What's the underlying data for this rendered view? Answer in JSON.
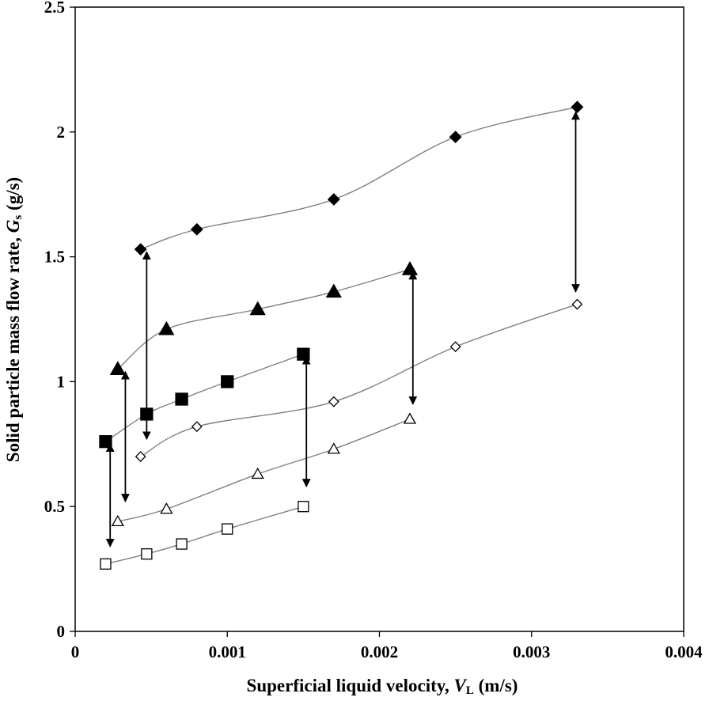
{
  "chart_data": {
    "type": "scatter",
    "title": "",
    "xlabel": {
      "main": "Superficial liquid velocity, ",
      "var": "V",
      "sub": "L",
      "unit": " (m/s)"
    },
    "ylabel": {
      "main": "Solid particle mass flow rate, ",
      "var": "G",
      "sub": "s",
      "unit": " (g/s)"
    },
    "xlim": [
      0,
      0.004
    ],
    "ylim": [
      0,
      2.5
    ],
    "xticks": [
      0,
      0.001,
      0.002,
      0.003,
      0.004
    ],
    "xtick_labels": [
      "0",
      "0.001",
      "0.002",
      "0.003",
      "0.004"
    ],
    "yticks": [
      0,
      0.5,
      1,
      1.5,
      2,
      2.5
    ],
    "ytick_labels": [
      "0",
      "0.5",
      "1",
      "1.5",
      "2",
      "2.5"
    ],
    "grid": false,
    "line_color": "#808080",
    "series": [
      {
        "marker": "diamond-filled",
        "x": [
          0.00043,
          0.0008,
          0.0017,
          0.0025,
          0.0033
        ],
        "y": [
          1.53,
          1.61,
          1.73,
          1.98,
          2.1
        ]
      },
      {
        "marker": "triangle-filled",
        "x": [
          0.00028,
          0.0006,
          0.0012,
          0.0017,
          0.0022
        ],
        "y": [
          1.05,
          1.21,
          1.29,
          1.36,
          1.45
        ]
      },
      {
        "marker": "square-filled",
        "x": [
          0.0002,
          0.00047,
          0.0007,
          0.001,
          0.0015
        ],
        "y": [
          0.76,
          0.87,
          0.93,
          1.0,
          1.11
        ]
      },
      {
        "marker": "diamond-open",
        "x": [
          0.00043,
          0.0008,
          0.0017,
          0.0025,
          0.0033
        ],
        "y": [
          0.7,
          0.82,
          0.92,
          1.14,
          1.31
        ]
      },
      {
        "marker": "triangle-open",
        "x": [
          0.00028,
          0.0006,
          0.0012,
          0.0017,
          0.0022
        ],
        "y": [
          0.44,
          0.49,
          0.63,
          0.73,
          0.85
        ]
      },
      {
        "marker": "square-open",
        "x": [
          0.0002,
          0.00047,
          0.0007,
          0.001,
          0.0015
        ],
        "y": [
          0.27,
          0.31,
          0.35,
          0.41,
          0.5
        ]
      }
    ],
    "arrows": [
      {
        "x": 0.00023,
        "y_from": 0.75,
        "y_to": 0.34
      },
      {
        "x": 0.00033,
        "y_from": 1.04,
        "y_to": 0.52
      },
      {
        "x": 0.00047,
        "y_from": 1.52,
        "y_to": 0.77
      },
      {
        "x": 0.00152,
        "y_from": 1.1,
        "y_to": 0.58
      },
      {
        "x": 0.00222,
        "y_from": 1.44,
        "y_to": 0.91
      },
      {
        "x": 0.00329,
        "y_from": 2.08,
        "y_to": 1.36
      }
    ]
  }
}
